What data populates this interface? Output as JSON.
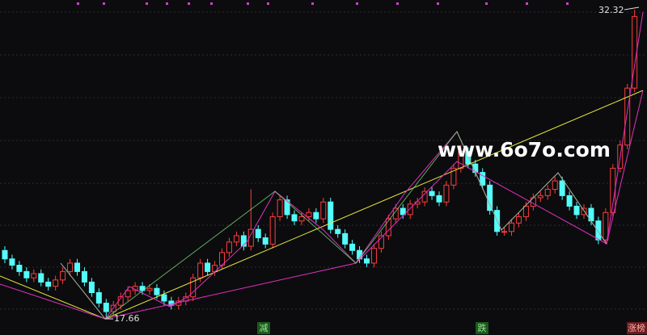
{
  "chart_data": {
    "type": "candlestick",
    "watermark": "www.6o7o.com",
    "markers": [
      "减",
      "跌",
      "涨榜"
    ],
    "up_color": "#ff3c3c",
    "down_color": "#54fcfc",
    "ylim": [
      16.89,
      32.78
    ],
    "open": [
      20.9,
      20.5,
      20.2,
      19.9,
      19.6,
      19.8,
      19.4,
      19.2,
      19.5,
      19.9,
      20.3,
      19.9,
      19.4,
      18.9,
      18.4,
      18.0,
      18.3,
      18.7,
      19.0,
      19.2,
      19.0,
      19.1,
      18.8,
      18.5,
      18.3,
      18.5,
      18.7,
      19.6,
      20.3,
      19.9,
      20.2,
      20.8,
      21.3,
      21.6,
      21.1,
      21.9,
      21.5,
      21.2,
      22.5,
      23.3,
      22.6,
      22.3,
      22.5,
      22.7,
      22.4,
      23.2,
      21.9,
      21.7,
      21.2,
      20.9,
      20.5,
      20.3,
      21.0,
      21.6,
      22.4,
      22.9,
      22.6,
      23.1,
      23.2,
      23.7,
      23.5,
      23.2,
      24.0,
      24.8,
      25.6,
      25.0,
      24.6,
      24.0,
      22.8,
      21.8,
      21.8,
      22.2,
      22.5,
      23.0,
      23.4,
      23.5,
      23.8,
      24.2,
      23.5,
      23.0,
      22.6,
      22.9,
      22.3,
      21.4,
      22.7,
      24.8,
      25.9,
      28.6
    ],
    "high": [
      21.1,
      20.7,
      20.4,
      20.1,
      20.0,
      20.0,
      19.6,
      19.7,
      20.1,
      20.5,
      20.5,
      20.1,
      19.6,
      19.1,
      18.6,
      18.5,
      18.9,
      19.2,
      19.4,
      19.4,
      19.3,
      19.3,
      19.0,
      18.7,
      18.7,
      18.9,
      19.8,
      20.5,
      20.5,
      20.4,
      21.0,
      21.5,
      21.8,
      21.8,
      23.8,
      22.1,
      21.7,
      22.7,
      23.5,
      23.5,
      22.8,
      22.7,
      22.9,
      22.9,
      23.4,
      23.4,
      22.1,
      21.9,
      21.4,
      21.1,
      20.7,
      21.2,
      21.8,
      22.6,
      23.1,
      23.1,
      23.3,
      23.4,
      23.9,
      23.9,
      23.7,
      24.2,
      25.0,
      25.9,
      25.8,
      25.2,
      24.8,
      24.2,
      23.0,
      22.0,
      22.4,
      22.7,
      23.2,
      23.6,
      23.7,
      24.0,
      24.4,
      24.4,
      23.7,
      23.2,
      23.1,
      23.1,
      22.5,
      22.9,
      25.0,
      26.1,
      28.8,
      32.32
    ],
    "low": [
      20.3,
      20.0,
      19.7,
      19.4,
      19.4,
      19.2,
      19.0,
      19.0,
      19.3,
      19.7,
      19.7,
      19.2,
      18.7,
      18.2,
      17.66,
      17.8,
      18.1,
      18.5,
      18.8,
      18.8,
      18.8,
      18.6,
      18.3,
      18.1,
      18.1,
      18.3,
      18.5,
      19.4,
      19.7,
      19.7,
      20.0,
      20.6,
      21.1,
      20.9,
      20.9,
      21.3,
      21.0,
      21.0,
      22.3,
      22.4,
      22.1,
      22.1,
      22.3,
      22.2,
      22.2,
      21.7,
      21.5,
      21.0,
      20.7,
      20.3,
      20.1,
      20.1,
      20.8,
      21.4,
      22.2,
      22.4,
      22.4,
      22.9,
      23.0,
      23.3,
      23.0,
      23.0,
      23.8,
      24.6,
      24.8,
      24.4,
      23.8,
      22.6,
      21.6,
      21.6,
      21.6,
      22.0,
      22.3,
      22.8,
      23.2,
      23.3,
      23.6,
      23.3,
      22.8,
      22.4,
      22.4,
      22.1,
      21.2,
      21.2,
      22.5,
      24.6,
      25.7,
      28.4
    ],
    "close": [
      20.5,
      20.2,
      19.9,
      19.6,
      19.8,
      19.4,
      19.2,
      19.5,
      19.9,
      20.3,
      19.9,
      19.4,
      18.9,
      18.4,
      18.0,
      18.3,
      18.7,
      19.0,
      19.2,
      19.0,
      19.1,
      18.8,
      18.5,
      18.3,
      18.5,
      18.7,
      19.6,
      20.3,
      19.9,
      20.2,
      20.8,
      21.3,
      21.6,
      21.1,
      21.9,
      21.5,
      21.2,
      22.5,
      23.3,
      22.6,
      22.3,
      22.5,
      22.7,
      22.4,
      23.2,
      21.9,
      21.7,
      21.2,
      20.9,
      20.5,
      20.3,
      21.0,
      21.6,
      22.4,
      22.9,
      22.6,
      23.1,
      23.2,
      23.7,
      23.5,
      23.2,
      24.0,
      24.8,
      25.6,
      25.0,
      24.6,
      24.0,
      22.8,
      21.8,
      21.8,
      22.2,
      22.5,
      23.0,
      23.4,
      23.5,
      23.8,
      24.2,
      23.5,
      23.0,
      22.6,
      22.9,
      22.3,
      21.4,
      22.7,
      24.8,
      25.9,
      28.6,
      32.0
    ]
  }
}
